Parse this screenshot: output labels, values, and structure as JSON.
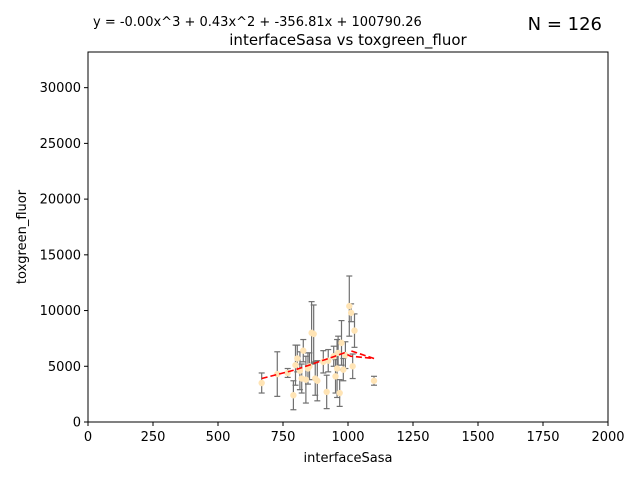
{
  "chart_data": {
    "type": "scatter",
    "title": "interfaceSasa vs toxgreen_fluor",
    "equation": "y = -0.00x^3 + 0.43x^2 + -356.81x + 100790.26",
    "count_label": "N = 126",
    "xlabel": "interfaceSasa",
    "ylabel": "toxgreen_fluor",
    "xlim": [
      0,
      2000
    ],
    "ylim": [
      0,
      33200
    ],
    "x_ticks": [
      0,
      250,
      500,
      750,
      1000,
      1250,
      1500,
      1750,
      2000
    ],
    "y_ticks": [
      0,
      5000,
      10000,
      15000,
      20000,
      25000,
      30000
    ],
    "grid": false,
    "colors": {
      "points": "#ffe4b5",
      "errorbars": "#707070",
      "fit": "#ff0000"
    },
    "points": [
      {
        "x": 668,
        "y": 3500,
        "err": 900
      },
      {
        "x": 728,
        "y": 4300,
        "err": 2000
      },
      {
        "x": 768,
        "y": 4400,
        "err": 400
      },
      {
        "x": 790,
        "y": 2400,
        "err": 1300
      },
      {
        "x": 798,
        "y": 5100,
        "err": 1800
      },
      {
        "x": 805,
        "y": 5700,
        "err": 1200
      },
      {
        "x": 815,
        "y": 4600,
        "err": 1700
      },
      {
        "x": 822,
        "y": 3900,
        "err": 1300
      },
      {
        "x": 828,
        "y": 6400,
        "err": 1000
      },
      {
        "x": 838,
        "y": 3800,
        "err": 2100
      },
      {
        "x": 846,
        "y": 4800,
        "err": 1400
      },
      {
        "x": 852,
        "y": 5000,
        "err": 1200
      },
      {
        "x": 860,
        "y": 8000,
        "err": 2800
      },
      {
        "x": 868,
        "y": 7900,
        "err": 2600
      },
      {
        "x": 874,
        "y": 3900,
        "err": 1500
      },
      {
        "x": 882,
        "y": 3700,
        "err": 1800
      },
      {
        "x": 905,
        "y": 5400,
        "err": 1000
      },
      {
        "x": 918,
        "y": 2700,
        "err": 1500
      },
      {
        "x": 924,
        "y": 5500,
        "err": 1000
      },
      {
        "x": 945,
        "y": 5900,
        "err": 900
      },
      {
        "x": 952,
        "y": 4100,
        "err": 1500
      },
      {
        "x": 958,
        "y": 4800,
        "err": 2600
      },
      {
        "x": 962,
        "y": 6200,
        "err": 1500
      },
      {
        "x": 968,
        "y": 2600,
        "err": 1200
      },
      {
        "x": 975,
        "y": 7100,
        "err": 2000
      },
      {
        "x": 982,
        "y": 4700,
        "err": 1000
      },
      {
        "x": 990,
        "y": 6000,
        "err": 1200
      },
      {
        "x": 1005,
        "y": 10400,
        "err": 2700
      },
      {
        "x": 1012,
        "y": 9800,
        "err": 800
      },
      {
        "x": 1018,
        "y": 5000,
        "err": 1100
      },
      {
        "x": 1025,
        "y": 8200,
        "err": 1500
      },
      {
        "x": 1100,
        "y": 3700,
        "err": 400
      }
    ],
    "fit_line": [
      {
        "x": 668,
        "y": 3900
      },
      {
        "x": 750,
        "y": 4400
      },
      {
        "x": 800,
        "y": 4700
      },
      {
        "x": 850,
        "y": 5100
      },
      {
        "x": 900,
        "y": 5500
      },
      {
        "x": 950,
        "y": 5900
      },
      {
        "x": 985,
        "y": 6200
      },
      {
        "x": 1010,
        "y": 5900
      },
      {
        "x": 1100,
        "y": 5700
      },
      {
        "x": 1010,
        "y": 6400
      }
    ]
  }
}
